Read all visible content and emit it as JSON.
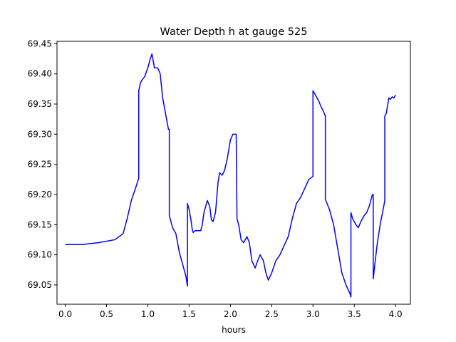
{
  "chart_data": {
    "type": "line",
    "title": "Water Depth h at gauge 525",
    "xlabel": "hours",
    "ylabel": "",
    "xlim": [
      -0.1,
      4.18
    ],
    "ylim": [
      69.018,
      69.454
    ],
    "x_ticks": [
      0.0,
      0.5,
      1.0,
      1.5,
      2.0,
      2.5,
      3.0,
      3.5,
      4.0
    ],
    "x_tick_labels": [
      "0.0",
      "0.5",
      "1.0",
      "1.5",
      "2.0",
      "2.5",
      "3.0",
      "3.5",
      "4.0"
    ],
    "y_ticks": [
      69.05,
      69.1,
      69.15,
      69.2,
      69.25,
      69.3,
      69.35,
      69.4,
      69.45
    ],
    "y_tick_labels": [
      "69.05",
      "69.10",
      "69.15",
      "69.20",
      "69.25",
      "69.30",
      "69.35",
      "69.40",
      "69.45"
    ],
    "grid": false,
    "series": [
      {
        "color": "#0000ff",
        "x": [
          0.0,
          0.2,
          0.4,
          0.6,
          0.7,
          0.75,
          0.8,
          0.85,
          0.89,
          0.89,
          0.91,
          0.93,
          0.96,
          1.0,
          1.03,
          1.05,
          1.08,
          1.12,
          1.15,
          1.18,
          1.22,
          1.25,
          1.26,
          1.26,
          1.3,
          1.34,
          1.38,
          1.42,
          1.46,
          1.48,
          1.48,
          1.5,
          1.52,
          1.54,
          1.55,
          1.57,
          1.6,
          1.64,
          1.66,
          1.68,
          1.7,
          1.72,
          1.75,
          1.77,
          1.79,
          1.82,
          1.85,
          1.87,
          1.9,
          1.93,
          1.96,
          2.0,
          2.03,
          2.06,
          2.07,
          2.08,
          2.08,
          2.1,
          2.13,
          2.16,
          2.2,
          2.23,
          2.26,
          2.3,
          2.33,
          2.36,
          2.4,
          2.43,
          2.46,
          2.5,
          2.55,
          2.6,
          2.65,
          2.7,
          2.75,
          2.8,
          2.85,
          2.9,
          2.95,
          3.0,
          3.0,
          3.03,
          3.07,
          3.1,
          3.12,
          3.15,
          3.15,
          3.2,
          3.25,
          3.3,
          3.35,
          3.4,
          3.45,
          3.46,
          3.46,
          3.48,
          3.5,
          3.52,
          3.55,
          3.58,
          3.6,
          3.62,
          3.65,
          3.68,
          3.7,
          3.72,
          3.73,
          3.73,
          3.75,
          3.78,
          3.82,
          3.85,
          3.87,
          3.87,
          3.89,
          3.9,
          3.92,
          3.94,
          3.96,
          3.98,
          4.0
        ],
        "y": [
          69.117,
          69.117,
          69.12,
          69.125,
          69.135,
          69.16,
          69.19,
          69.21,
          69.227,
          69.372,
          69.385,
          69.39,
          69.395,
          69.41,
          69.425,
          69.433,
          69.41,
          69.41,
          69.4,
          69.36,
          69.33,
          69.308,
          69.308,
          69.165,
          69.145,
          69.135,
          69.105,
          69.085,
          69.065,
          69.048,
          69.185,
          69.175,
          69.16,
          69.14,
          69.137,
          69.14,
          69.14,
          69.14,
          69.15,
          69.17,
          69.18,
          69.19,
          69.18,
          69.158,
          69.155,
          69.17,
          69.22,
          69.236,
          69.232,
          69.24,
          69.258,
          69.29,
          69.3,
          69.3,
          69.3,
          69.16,
          69.16,
          69.15,
          69.125,
          69.12,
          69.13,
          69.12,
          69.09,
          69.078,
          69.09,
          69.1,
          69.09,
          69.07,
          69.058,
          69.07,
          69.09,
          69.1,
          69.115,
          69.13,
          69.16,
          69.185,
          69.195,
          69.21,
          69.225,
          69.23,
          69.372,
          69.365,
          69.355,
          69.345,
          69.34,
          69.33,
          69.192,
          69.175,
          69.15,
          69.11,
          69.07,
          69.05,
          69.035,
          69.03,
          69.17,
          69.16,
          69.155,
          69.15,
          69.145,
          69.155,
          69.16,
          69.165,
          69.17,
          69.18,
          69.19,
          69.2,
          69.2,
          69.06,
          69.085,
          69.12,
          69.155,
          69.175,
          69.19,
          69.33,
          69.335,
          69.345,
          69.36,
          69.358,
          69.362,
          69.36,
          69.365
        ]
      }
    ]
  }
}
